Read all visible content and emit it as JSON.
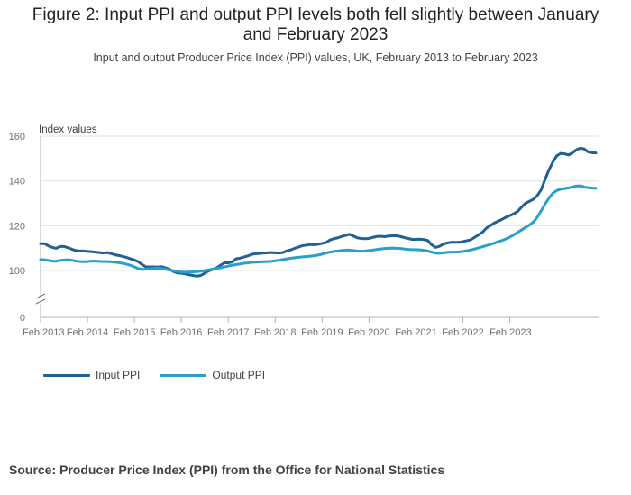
{
  "page": {
    "title": "Figure 2: Input PPI and output PPI levels both fell slightly between January and February 2023",
    "subtitle": "Input and output Producer Price Index (PPI) values, UK, February 2013 to February 2023",
    "source": "Source: Producer Price Index (PPI) from the Office for National Statistics"
  },
  "chart_data": {
    "type": "line",
    "ylabel": "Index values",
    "ylim": [
      0,
      160
    ],
    "y_ticks": [
      0,
      100,
      120,
      140,
      160
    ],
    "axis_break": true,
    "grid": true,
    "legend_position": "bottom-left",
    "x_start": "2013-02",
    "x_ticks": [
      "Feb 2013",
      "Feb 2014",
      "Feb 2015",
      "Feb 2016",
      "Feb 2017",
      "Feb 2018",
      "Feb 2019",
      "Feb 2020",
      "Feb 2021",
      "Feb 2022",
      "Feb 2023"
    ],
    "series": [
      {
        "name": "Input PPI",
        "color": "#206095",
        "values": [
          112.0,
          112.0,
          111.0,
          110.3,
          109.9,
          110.7,
          110.7,
          110.2,
          109.5,
          108.9,
          108.7,
          108.7,
          108.5,
          108.4,
          108.2,
          108.0,
          107.8,
          108.0,
          107.6,
          107.0,
          106.7,
          106.3,
          105.8,
          105.2,
          104.7,
          103.9,
          102.6,
          101.6,
          101.6,
          101.6,
          101.5,
          101.7,
          101.2,
          100.6,
          99.5,
          98.9,
          98.8,
          98.5,
          98.1,
          97.8,
          97.5,
          97.8,
          98.8,
          99.8,
          100.5,
          101.2,
          102.3,
          103.4,
          103.4,
          103.8,
          105.2,
          105.5,
          106.0,
          106.5,
          107.2,
          107.5,
          107.6,
          107.8,
          107.9,
          108.0,
          107.9,
          107.8,
          108.0,
          108.8,
          109.2,
          109.9,
          110.5,
          111.1,
          111.3,
          111.6,
          111.5,
          111.7,
          112.1,
          112.5,
          113.6,
          114.2,
          114.6,
          115.2,
          115.7,
          116.2,
          115.4,
          114.6,
          114.3,
          114.2,
          114.3,
          114.8,
          115.2,
          115.3,
          115.1,
          115.4,
          115.5,
          115.5,
          115.2,
          114.7,
          114.3,
          113.9,
          113.9,
          114.0,
          113.8,
          113.4,
          111.5,
          110.3,
          110.8,
          111.8,
          112.3,
          112.6,
          112.6,
          112.6,
          112.9,
          113.3,
          113.7,
          114.8,
          115.9,
          117.1,
          118.9,
          120.0,
          121.2,
          122.0,
          122.8,
          123.8,
          124.5,
          125.3,
          126.4,
          128.3,
          130.0,
          130.9,
          131.8,
          133.4,
          136.0,
          140.6,
          144.9,
          148.4,
          151.2,
          152.3,
          152.1,
          151.6,
          152.5,
          153.9,
          154.6,
          154.3,
          153.0,
          152.6,
          152.5
        ]
      },
      {
        "name": "Output PPI",
        "color": "#27a0cc",
        "values": [
          104.9,
          104.8,
          104.5,
          104.2,
          104.1,
          104.5,
          104.7,
          104.8,
          104.6,
          104.2,
          104.0,
          103.9,
          104.0,
          104.2,
          104.2,
          104.1,
          104.0,
          104.0,
          103.9,
          103.7,
          103.5,
          103.2,
          102.8,
          102.3,
          101.6,
          100.8,
          100.5,
          100.6,
          100.8,
          101.0,
          101.0,
          100.9,
          100.6,
          100.2,
          99.9,
          99.6,
          99.3,
          99.2,
          99.3,
          99.4,
          99.5,
          99.7,
          100.0,
          100.3,
          100.6,
          100.9,
          101.2,
          101.6,
          102.0,
          102.3,
          102.6,
          102.9,
          103.2,
          103.4,
          103.6,
          103.7,
          103.8,
          103.9,
          104.0,
          104.1,
          104.3,
          104.6,
          104.9,
          105.2,
          105.5,
          105.7,
          105.9,
          106.1,
          106.2,
          106.4,
          106.6,
          106.9,
          107.3,
          107.8,
          108.2,
          108.5,
          108.7,
          108.9,
          109.1,
          109.1,
          108.9,
          108.7,
          108.6,
          108.7,
          108.9,
          109.1,
          109.4,
          109.6,
          109.8,
          109.9,
          110.0,
          109.9,
          109.8,
          109.6,
          109.4,
          109.3,
          109.3,
          109.2,
          109.0,
          108.7,
          108.2,
          107.8,
          107.7,
          107.9,
          108.1,
          108.2,
          108.2,
          108.3,
          108.5,
          108.8,
          109.2,
          109.6,
          110.1,
          110.6,
          111.1,
          111.6,
          112.2,
          112.8,
          113.4,
          114.1,
          114.9,
          115.9,
          117.0,
          118.1,
          119.2,
          120.3,
          121.6,
          123.7,
          126.6,
          129.6,
          132.3,
          134.5,
          135.7,
          136.3,
          136.6,
          136.9,
          137.3,
          137.7,
          137.8,
          137.3,
          137.0,
          136.8,
          136.7
        ]
      }
    ]
  }
}
